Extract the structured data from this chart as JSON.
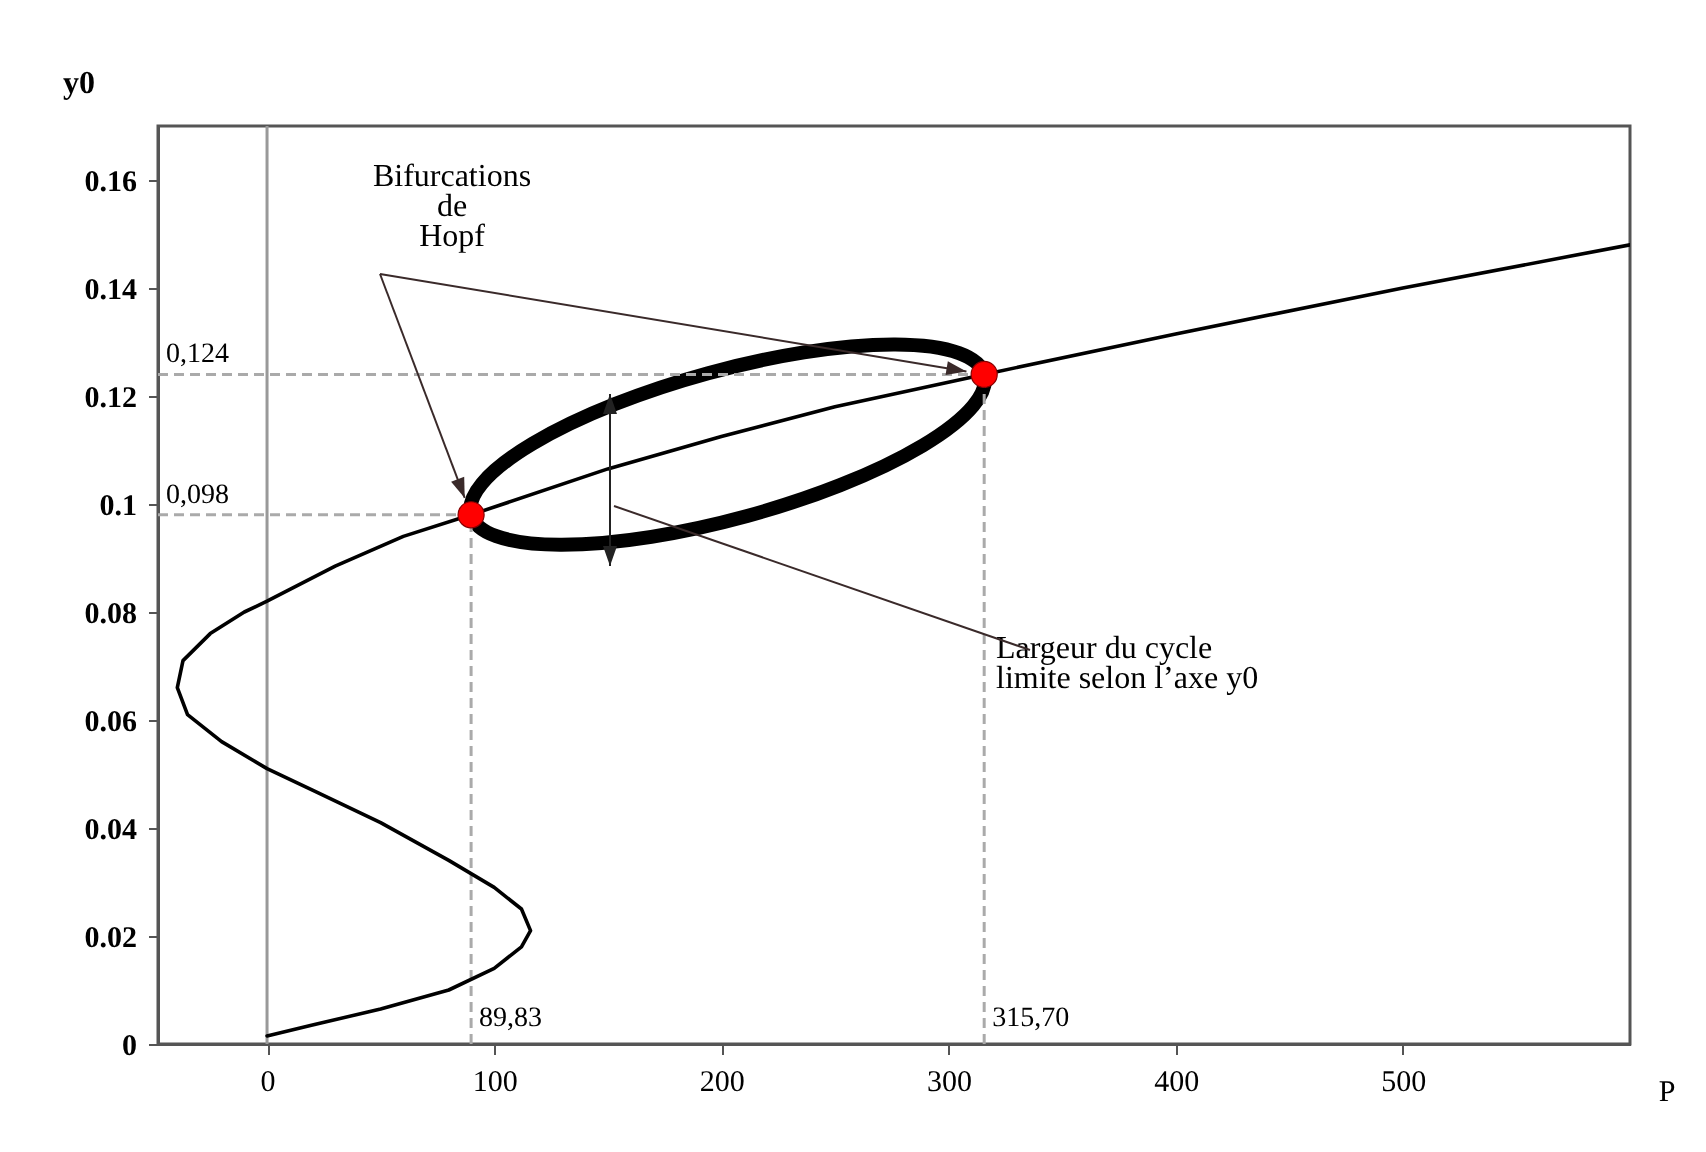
{
  "chart_data": {
    "type": "line",
    "xlabel": "P",
    "ylabel": "y0",
    "xlim": [
      -48,
      600
    ],
    "ylim": [
      0,
      0.17
    ],
    "xticks": [
      0,
      100,
      200,
      300,
      400,
      500
    ],
    "yticks": [
      0,
      0.02,
      0.04,
      0.06,
      0.08,
      0.1,
      0.12,
      0.14,
      0.16
    ],
    "series": [
      {
        "color": "#000000",
        "x": [
          0,
          20,
          50,
          80,
          100,
          112,
          116,
          112,
          100,
          80,
          50,
          20,
          0,
          -20,
          -35,
          -39.5,
          -37,
          -25,
          -10,
          0,
          30,
          60,
          89.83,
          150,
          200,
          250,
          315.7,
          400,
          500,
          600
        ],
        "values": [
          0.0015,
          0.0035,
          0.0065,
          0.01,
          0.014,
          0.018,
          0.021,
          0.025,
          0.029,
          0.034,
          0.041,
          0.047,
          0.051,
          0.056,
          0.061,
          0.066,
          0.071,
          0.076,
          0.08,
          0.082,
          0.0885,
          0.094,
          0.098,
          0.1065,
          0.1125,
          0.118,
          0.124,
          0.1315,
          0.14,
          0.148
        ]
      },
      {
        "type": "scatter",
        "color": "#ff0000",
        "x": [
          89.83,
          315.7
        ],
        "values": [
          0.098,
          0.124
        ]
      }
    ],
    "ref_lines": [
      {
        "axis": "x",
        "value": 0,
        "color": "#999999",
        "line_style": "solid"
      },
      {
        "axis": "y",
        "value": 0.124,
        "label": "0,124",
        "color": "#aaaaaa",
        "line_style": "dashed"
      },
      {
        "axis": "y",
        "value": 0.098,
        "label": "0,098",
        "color": "#aaaaaa",
        "line_style": "dashed"
      },
      {
        "axis": "x",
        "value": 89.83,
        "label": "89,83",
        "color": "#aaaaaa",
        "line_style": "dashed"
      },
      {
        "axis": "x",
        "value": 315.7,
        "label": "315,70",
        "color": "#aaaaaa",
        "line_style": "dashed"
      }
    ],
    "annotations": [
      "Bifurcations de Hopf",
      "Largeur du cycle limite selon l’axe y0"
    ]
  }
}
